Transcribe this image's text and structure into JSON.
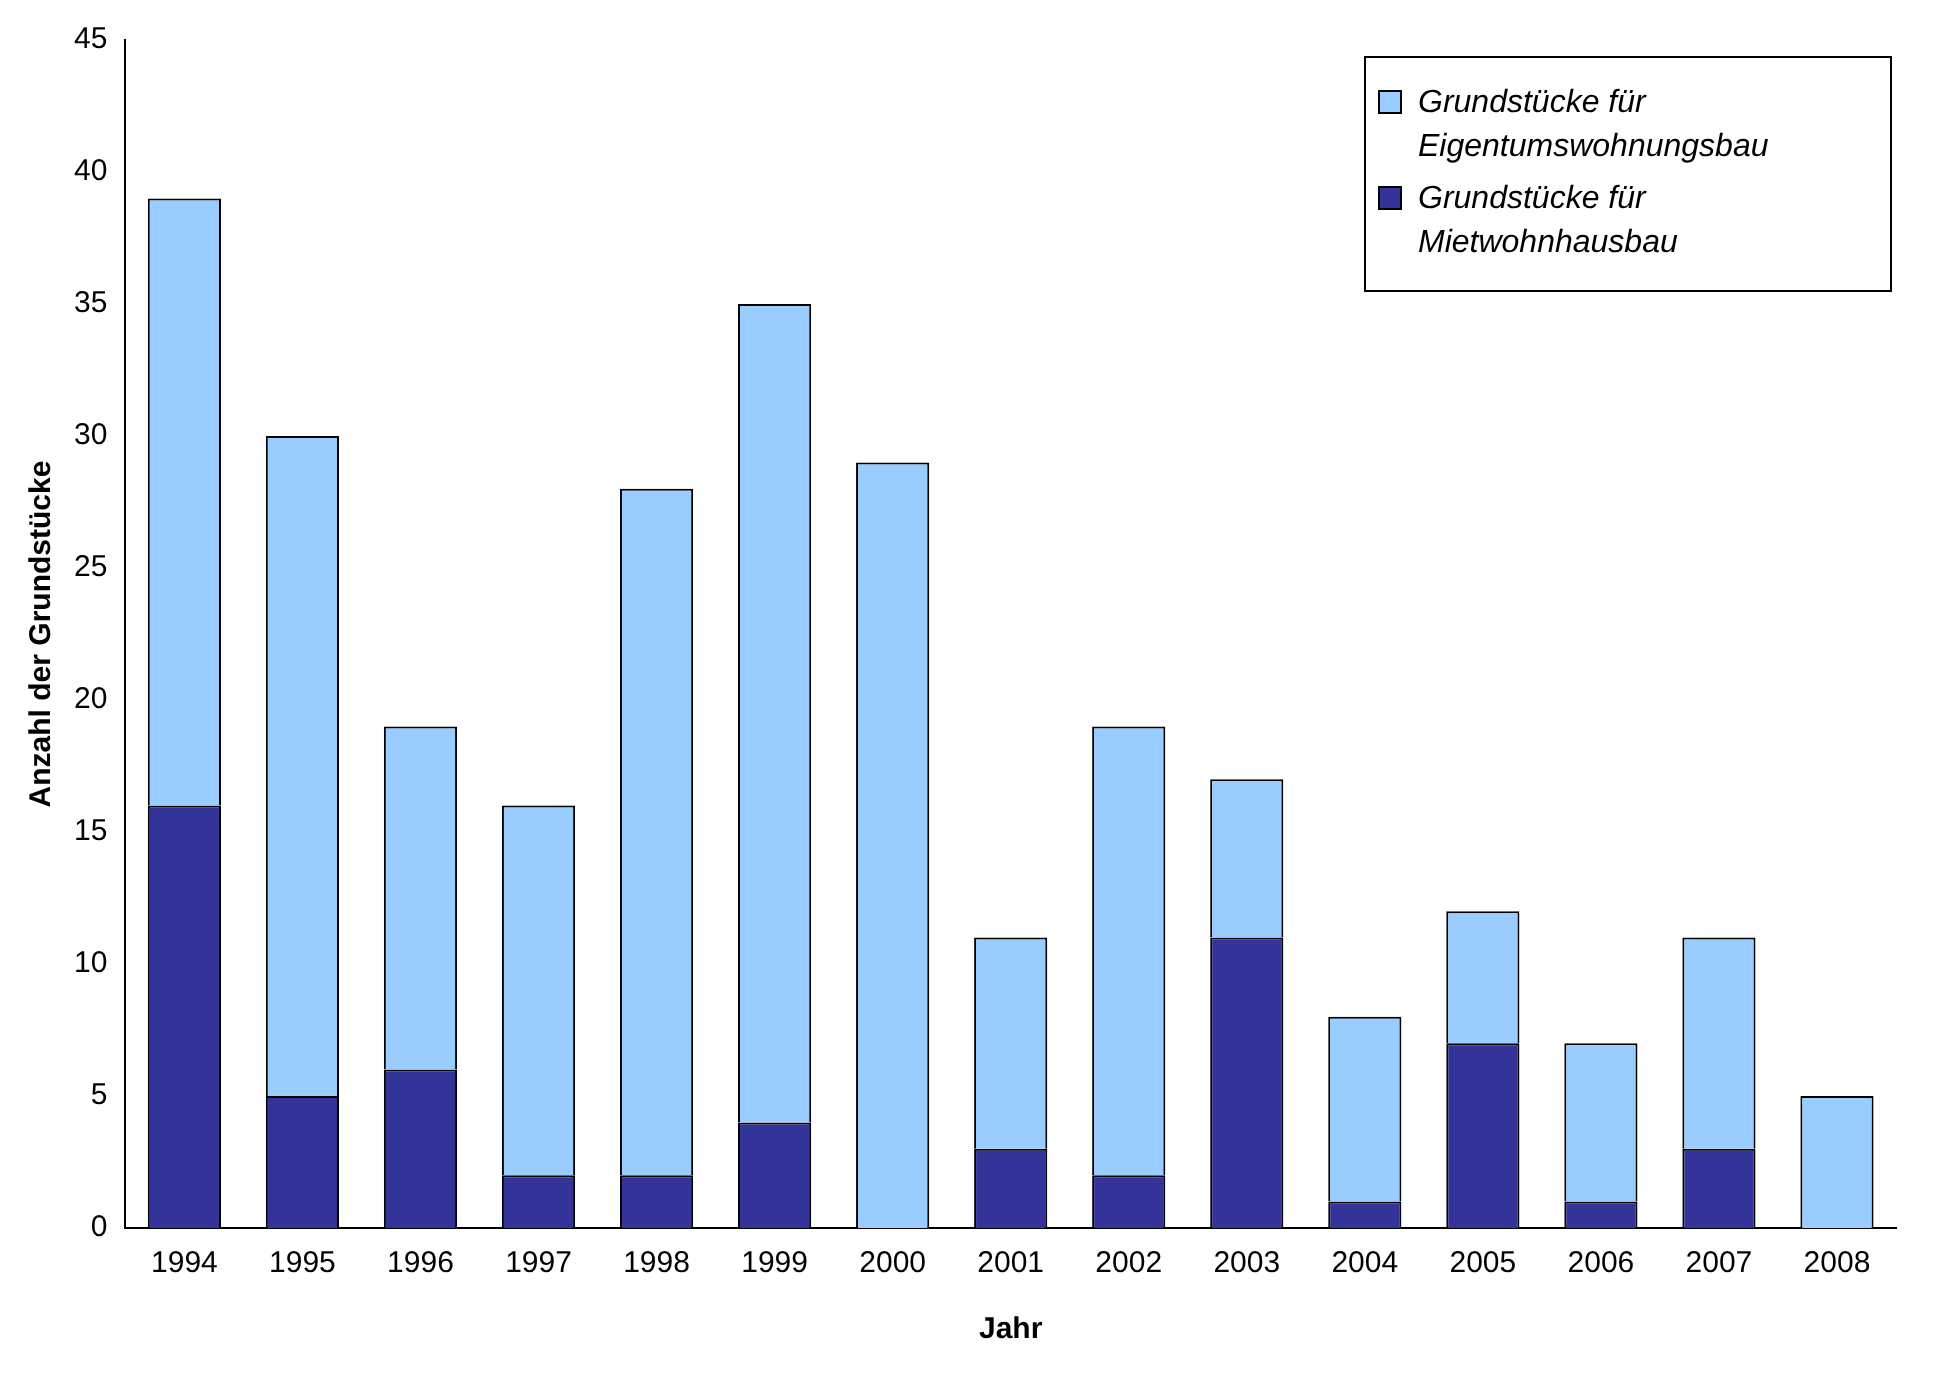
{
  "chart_data": {
    "type": "bar",
    "stacked": true,
    "xlabel": "Jahr",
    "ylabel": "Anzahl der Grundstücke",
    "categories": [
      "1994",
      "1995",
      "1996",
      "1997",
      "1998",
      "1999",
      "2000",
      "2001",
      "2002",
      "2003",
      "2004",
      "2005",
      "2006",
      "2007",
      "2008"
    ],
    "series": [
      {
        "name": "Grundstücke für Mietwohnhausbau",
        "color": "#333399",
        "values": [
          16,
          5,
          6,
          2,
          2,
          4,
          0,
          3,
          2,
          11,
          1,
          7,
          1,
          3,
          0
        ]
      },
      {
        "name": "Grundstücke für Eigentumswohnungsbau",
        "color": "#99ccff",
        "values": [
          23,
          25,
          13,
          14,
          26,
          31,
          29,
          8,
          17,
          6,
          7,
          5,
          6,
          8,
          5
        ]
      }
    ],
    "ylim": [
      0,
      45
    ],
    "yticks": [
      0,
      5,
      10,
      15,
      20,
      25,
      30,
      35,
      40,
      45
    ],
    "grid": false,
    "legend": "top right"
  }
}
